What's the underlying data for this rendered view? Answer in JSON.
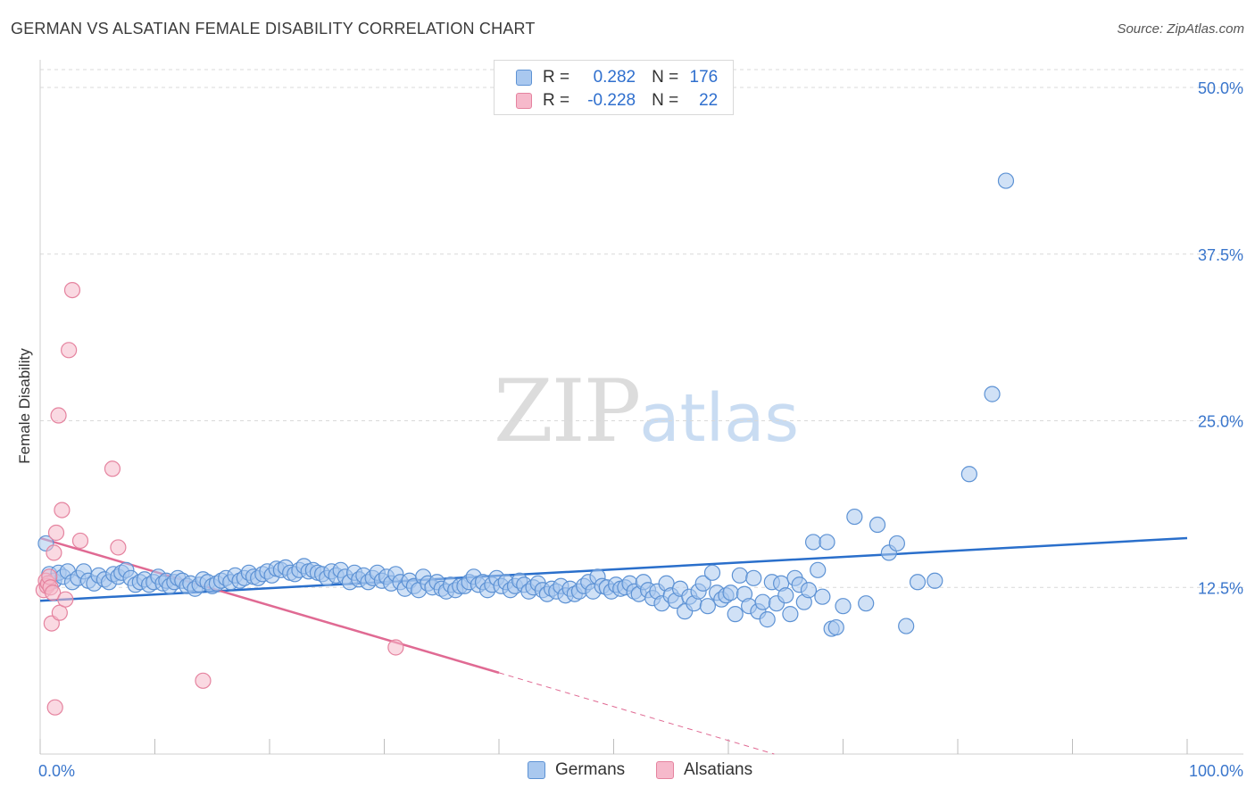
{
  "header": {
    "title": "GERMAN VS ALSATIAN FEMALE DISABILITY CORRELATION CHART",
    "source": "Source: ZipAtlas.com"
  },
  "watermark": {
    "zip": "ZIP",
    "atlas": "atlas"
  },
  "legend": {
    "rows": [
      {
        "r_label": "R =",
        "r_value": "0.282",
        "n_label": "N =",
        "n_value": "176",
        "color": "#a9c8ef"
      },
      {
        "r_label": "R =",
        "r_value": "-0.228",
        "n_label": "N =",
        "n_value": "22",
        "color": "#f6b9cb"
      }
    ]
  },
  "bottom_legend": {
    "germans": "Germans",
    "alsatians": "Alsatians"
  },
  "colors": {
    "blue_fill": "#a9c8ef",
    "blue_stroke": "#5d92d4",
    "blue_line": "#2a6fcb",
    "pink_fill": "#f6b9cb",
    "pink_stroke": "#e5839f",
    "pink_line": "#e06a93",
    "grid": "#d9d9d9",
    "tick_text": "#3a76cc"
  },
  "chart_data": {
    "type": "scatter",
    "title": "GERMAN VS ALSATIAN FEMALE DISABILITY CORRELATION CHART",
    "xlabel": "",
    "ylabel": "Female Disability",
    "xlim": [
      0,
      100
    ],
    "ylim": [
      0,
      50
    ],
    "x_tick_labels": [
      "0.0%",
      "100.0%"
    ],
    "y_ticks": [
      12.5,
      25.0,
      37.5,
      50.0
    ],
    "y_tick_labels": [
      "12.5%",
      "25.0%",
      "37.5%",
      "50.0%"
    ],
    "grid": true,
    "series": [
      {
        "name": "Germans",
        "R": 0.282,
        "N": 176,
        "trend": {
          "x0": 0,
          "y0": 11.5,
          "x1": 100,
          "y1": 16.2
        },
        "points": [
          [
            0.5,
            15.8
          ],
          [
            0.8,
            13.5
          ],
          [
            1.2,
            13.0
          ],
          [
            1.6,
            13.6
          ],
          [
            2.0,
            13.3
          ],
          [
            2.4,
            13.7
          ],
          [
            2.8,
            12.9
          ],
          [
            3.3,
            13.2
          ],
          [
            3.8,
            13.7
          ],
          [
            4.2,
            13.0
          ],
          [
            4.7,
            12.8
          ],
          [
            5.1,
            13.4
          ],
          [
            5.6,
            13.1
          ],
          [
            6.0,
            12.9
          ],
          [
            6.4,
            13.5
          ],
          [
            6.8,
            13.3
          ],
          [
            7.1,
            13.6
          ],
          [
            7.5,
            13.8
          ],
          [
            7.9,
            13.2
          ],
          [
            8.3,
            12.7
          ],
          [
            8.7,
            12.9
          ],
          [
            9.1,
            13.1
          ],
          [
            9.5,
            12.7
          ],
          [
            9.9,
            12.9
          ],
          [
            10.3,
            13.3
          ],
          [
            10.7,
            12.8
          ],
          [
            11.0,
            13.0
          ],
          [
            11.3,
            12.6
          ],
          [
            11.7,
            12.9
          ],
          [
            12.0,
            13.2
          ],
          [
            12.4,
            13.0
          ],
          [
            12.8,
            12.6
          ],
          [
            13.1,
            12.8
          ],
          [
            13.5,
            12.4
          ],
          [
            13.9,
            12.7
          ],
          [
            14.2,
            13.1
          ],
          [
            14.6,
            12.9
          ],
          [
            15.0,
            12.6
          ],
          [
            15.4,
            12.8
          ],
          [
            15.8,
            13.0
          ],
          [
            16.2,
            13.2
          ],
          [
            16.6,
            12.9
          ],
          [
            17.0,
            13.4
          ],
          [
            17.4,
            13.0
          ],
          [
            17.8,
            13.2
          ],
          [
            18.2,
            13.6
          ],
          [
            18.6,
            13.3
          ],
          [
            19.0,
            13.2
          ],
          [
            19.4,
            13.5
          ],
          [
            19.8,
            13.7
          ],
          [
            20.2,
            13.4
          ],
          [
            20.6,
            13.9
          ],
          [
            21.0,
            13.8
          ],
          [
            21.4,
            14.0
          ],
          [
            21.8,
            13.6
          ],
          [
            22.2,
            13.5
          ],
          [
            22.6,
            13.8
          ],
          [
            23.0,
            14.1
          ],
          [
            23.4,
            13.7
          ],
          [
            23.8,
            13.8
          ],
          [
            24.2,
            13.6
          ],
          [
            24.6,
            13.5
          ],
          [
            25.0,
            13.2
          ],
          [
            25.4,
            13.7
          ],
          [
            25.8,
            13.4
          ],
          [
            26.2,
            13.8
          ],
          [
            26.6,
            13.3
          ],
          [
            27.0,
            12.9
          ],
          [
            27.4,
            13.6
          ],
          [
            27.8,
            13.1
          ],
          [
            28.2,
            13.4
          ],
          [
            28.6,
            12.9
          ],
          [
            29.0,
            13.2
          ],
          [
            29.4,
            13.6
          ],
          [
            29.8,
            13.0
          ],
          [
            30.2,
            13.3
          ],
          [
            30.6,
            12.8
          ],
          [
            31.0,
            13.5
          ],
          [
            31.4,
            12.9
          ],
          [
            31.8,
            12.4
          ],
          [
            32.2,
            13.0
          ],
          [
            32.6,
            12.6
          ],
          [
            33.0,
            12.3
          ],
          [
            33.4,
            13.3
          ],
          [
            33.8,
            12.8
          ],
          [
            34.2,
            12.5
          ],
          [
            34.6,
            12.9
          ],
          [
            35.0,
            12.4
          ],
          [
            35.4,
            12.2
          ],
          [
            35.8,
            12.7
          ],
          [
            36.2,
            12.3
          ],
          [
            36.6,
            12.6
          ],
          [
            37.0,
            12.6
          ],
          [
            37.4,
            12.9
          ],
          [
            37.8,
            13.3
          ],
          [
            38.2,
            12.7
          ],
          [
            38.6,
            12.9
          ],
          [
            39.0,
            12.3
          ],
          [
            39.4,
            12.7
          ],
          [
            39.8,
            13.2
          ],
          [
            40.2,
            12.6
          ],
          [
            40.6,
            12.9
          ],
          [
            41.0,
            12.3
          ],
          [
            41.4,
            12.6
          ],
          [
            41.8,
            13.0
          ],
          [
            42.2,
            12.7
          ],
          [
            42.6,
            12.2
          ],
          [
            43.0,
            12.5
          ],
          [
            43.4,
            12.8
          ],
          [
            43.8,
            12.3
          ],
          [
            44.2,
            12.0
          ],
          [
            44.6,
            12.4
          ],
          [
            45.0,
            12.2
          ],
          [
            45.4,
            12.6
          ],
          [
            45.8,
            11.9
          ],
          [
            46.2,
            12.4
          ],
          [
            46.6,
            12.0
          ],
          [
            47.0,
            12.2
          ],
          [
            47.4,
            12.6
          ],
          [
            47.8,
            12.9
          ],
          [
            48.2,
            12.2
          ],
          [
            48.6,
            13.3
          ],
          [
            49.0,
            12.6
          ],
          [
            49.4,
            12.5
          ],
          [
            49.8,
            12.2
          ],
          [
            50.2,
            12.7
          ],
          [
            50.6,
            12.4
          ],
          [
            51.0,
            12.5
          ],
          [
            51.4,
            12.8
          ],
          [
            51.8,
            12.2
          ],
          [
            52.2,
            12.0
          ],
          [
            52.6,
            12.9
          ],
          [
            53.0,
            12.3
          ],
          [
            53.4,
            11.7
          ],
          [
            53.8,
            12.2
          ],
          [
            54.2,
            11.3
          ],
          [
            54.6,
            12.8
          ],
          [
            55.0,
            11.9
          ],
          [
            55.4,
            11.5
          ],
          [
            55.8,
            12.4
          ],
          [
            56.2,
            10.7
          ],
          [
            56.6,
            11.8
          ],
          [
            57.0,
            11.3
          ],
          [
            57.4,
            12.2
          ],
          [
            57.8,
            12.8
          ],
          [
            58.2,
            11.1
          ],
          [
            58.6,
            13.6
          ],
          [
            59.0,
            12.1
          ],
          [
            59.4,
            11.6
          ],
          [
            59.8,
            11.9
          ],
          [
            60.2,
            12.1
          ],
          [
            60.6,
            10.5
          ],
          [
            61.0,
            13.4
          ],
          [
            61.4,
            12.0
          ],
          [
            61.8,
            11.1
          ],
          [
            62.2,
            13.2
          ],
          [
            62.6,
            10.7
          ],
          [
            63.0,
            11.4
          ],
          [
            63.4,
            10.1
          ],
          [
            63.8,
            12.9
          ],
          [
            64.2,
            11.3
          ],
          [
            64.6,
            12.8
          ],
          [
            65.0,
            11.9
          ],
          [
            65.4,
            10.5
          ],
          [
            65.8,
            13.2
          ],
          [
            66.2,
            12.7
          ],
          [
            66.6,
            11.4
          ],
          [
            67.0,
            12.3
          ],
          [
            67.4,
            15.9
          ],
          [
            67.8,
            13.8
          ],
          [
            68.2,
            11.8
          ],
          [
            68.6,
            15.9
          ],
          [
            69.0,
            9.4
          ],
          [
            69.4,
            9.5
          ],
          [
            70.0,
            11.1
          ],
          [
            71.0,
            17.8
          ],
          [
            72.0,
            11.3
          ],
          [
            73.0,
            17.2
          ],
          [
            74.0,
            15.1
          ],
          [
            74.7,
            15.8
          ],
          [
            75.5,
            9.6
          ],
          [
            76.5,
            12.9
          ],
          [
            78.0,
            13.0
          ],
          [
            81.0,
            21.0
          ],
          [
            83.0,
            27.0
          ],
          [
            84.2,
            43.0
          ]
        ]
      },
      {
        "name": "Alsatians",
        "R": -0.228,
        "N": 22,
        "trend": {
          "x0": 0,
          "y0": 16.2,
          "x1": 40,
          "y1": 6.1,
          "dashed_to_x": 64,
          "dashed_to_y": 0.0
        },
        "points": [
          [
            0.3,
            12.3
          ],
          [
            0.5,
            13.0
          ],
          [
            0.6,
            12.6
          ],
          [
            0.7,
            12.8
          ],
          [
            0.8,
            13.3
          ],
          [
            0.9,
            12.5
          ],
          [
            1.0,
            9.8
          ],
          [
            1.1,
            12.1
          ],
          [
            1.2,
            15.1
          ],
          [
            1.3,
            3.5
          ],
          [
            1.4,
            16.6
          ],
          [
            1.6,
            25.4
          ],
          [
            1.7,
            10.6
          ],
          [
            1.9,
            18.3
          ],
          [
            2.2,
            11.6
          ],
          [
            2.5,
            30.3
          ],
          [
            2.8,
            34.8
          ],
          [
            3.5,
            16.0
          ],
          [
            6.3,
            21.4
          ],
          [
            6.8,
            15.5
          ],
          [
            14.2,
            5.5
          ],
          [
            31.0,
            8.0
          ]
        ]
      }
    ]
  }
}
